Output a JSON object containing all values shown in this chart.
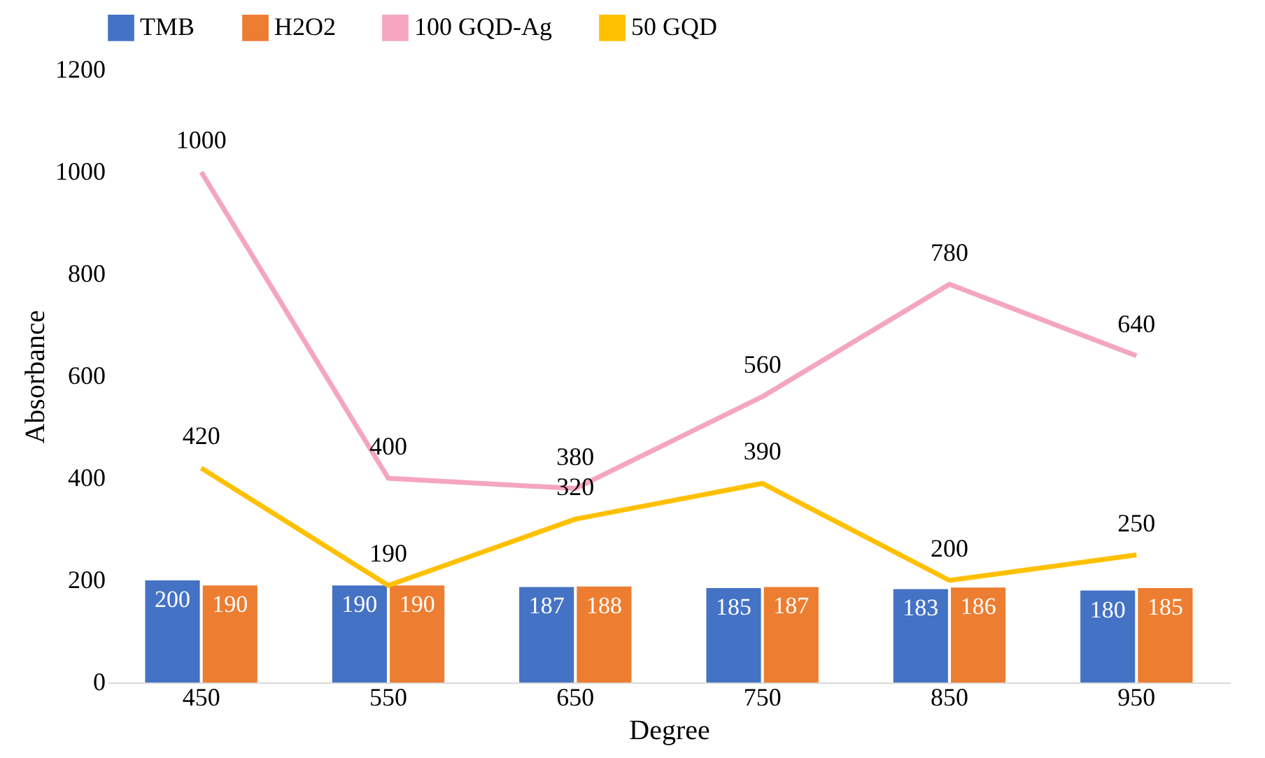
{
  "chart_data": {
    "type": "bar",
    "xlabel": "Degree",
    "ylabel": "Absorbance",
    "categories": [
      "450",
      "550",
      "650",
      "750",
      "850",
      "950"
    ],
    "series": [
      {
        "name": "TMB",
        "color": "#4472c4",
        "values": [
          200,
          190,
          187,
          185,
          183,
          180
        ]
      },
      {
        "name": "H2O2",
        "color": "#ed7d31",
        "values": [
          190,
          190,
          188,
          187,
          186,
          185
        ]
      },
      {
        "name": "100 GQD-Ag",
        "type": "line",
        "color": "#f4a6c0",
        "values": [
          1000,
          400,
          380,
          560,
          780,
          640
        ]
      },
      {
        "name": "50 GQD",
        "type": "line",
        "color": "#ffc000",
        "values": [
          420,
          190,
          320,
          390,
          200,
          250
        ]
      }
    ],
    "ylim": [
      0,
      1200
    ],
    "yticks": [
      0,
      200,
      400,
      600,
      800,
      1000,
      1200
    ],
    "data_labels": true,
    "legend": "top"
  }
}
